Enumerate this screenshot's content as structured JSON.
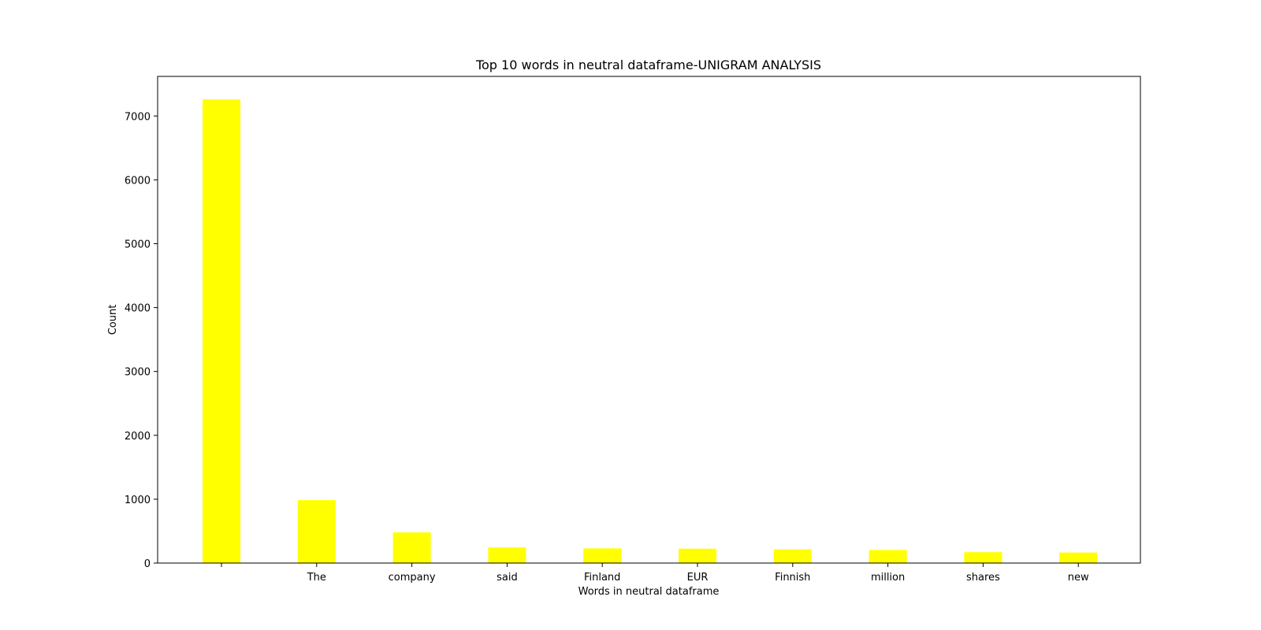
{
  "chart_data": {
    "type": "bar",
    "title": "Top 10 words in neutral dataframe-UNIGRAM ANALYSIS",
    "xlabel": "Words in neutral dataframe",
    "ylabel": "Count",
    "categories": [
      "",
      "The",
      "company",
      "said",
      "Finland",
      "EUR",
      "Finnish",
      "million",
      "shares",
      "new"
    ],
    "values": [
      7260,
      985,
      480,
      245,
      230,
      225,
      215,
      205,
      170,
      165
    ],
    "yticks": [
      0,
      1000,
      2000,
      3000,
      4000,
      5000,
      6000,
      7000
    ],
    "ylim": [
      0,
      7620
    ],
    "grid": false,
    "bar_color": "#ffff00"
  }
}
